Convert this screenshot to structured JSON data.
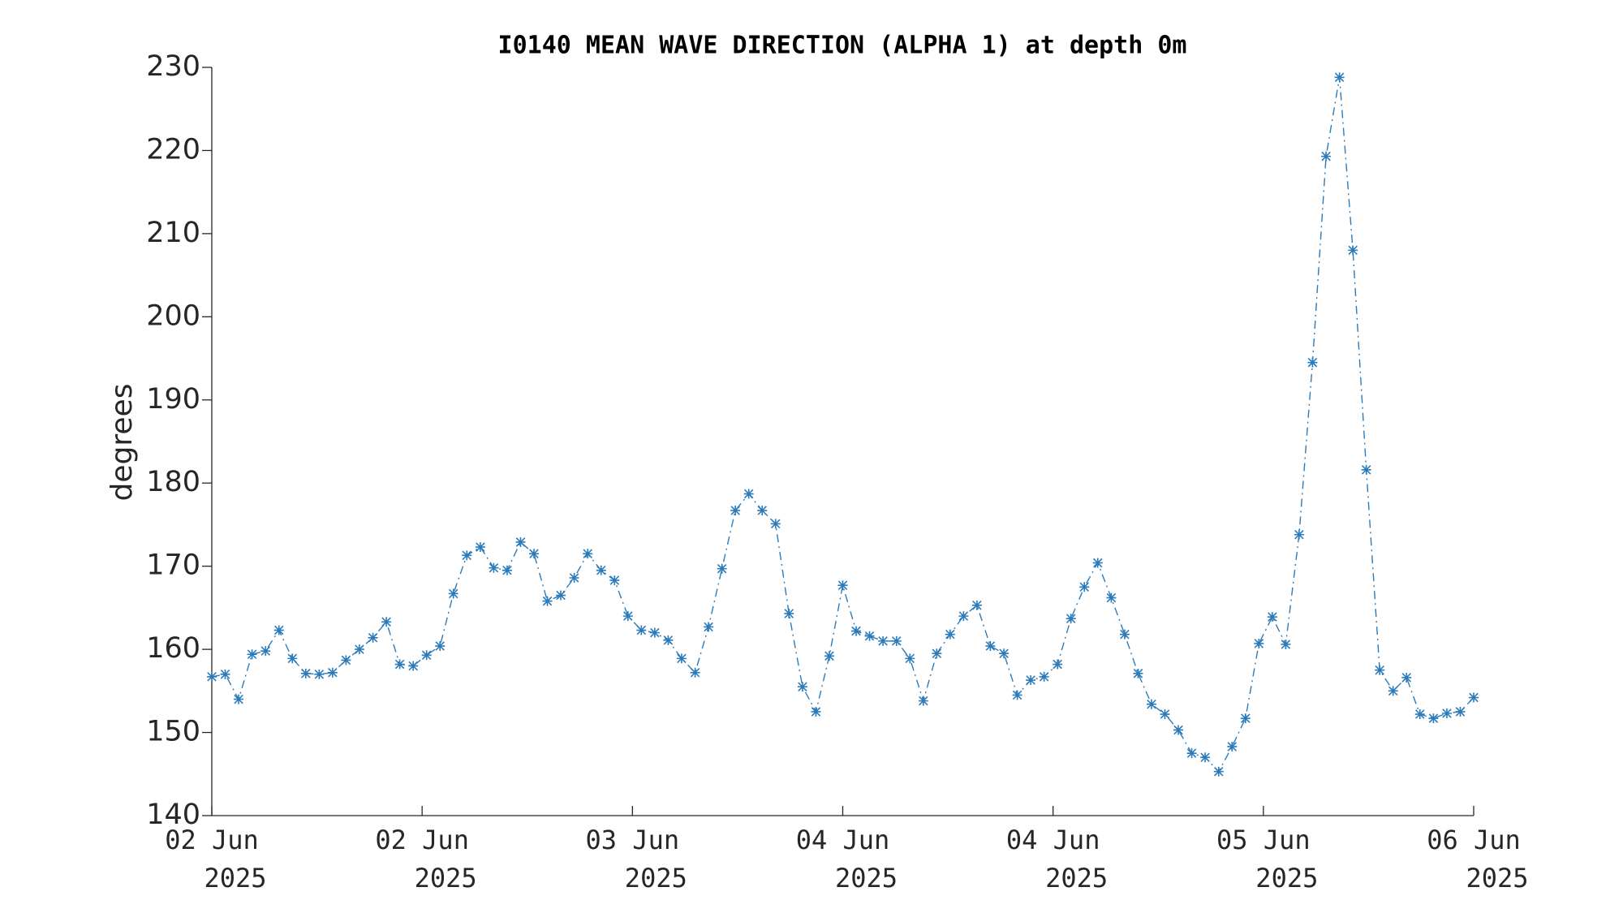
{
  "chart_data": {
    "type": "line",
    "title": "I0140 MEAN WAVE DIRECTION (ALPHA 1) at depth 0m",
    "ylabel": "degrees",
    "xlim": [
      0,
      96
    ],
    "xticks": [
      {
        "value": 0,
        "label": [
          "02 Jun",
          "2025"
        ]
      },
      {
        "value": 16,
        "label": [
          "02 Jun",
          "2025"
        ]
      },
      {
        "value": 32,
        "label": [
          "03 Jun",
          "2025"
        ]
      },
      {
        "value": 48,
        "label": [
          "04 Jun",
          "2025"
        ]
      },
      {
        "value": 64,
        "label": [
          "04 Jun",
          "2025"
        ]
      },
      {
        "value": 80,
        "label": [
          "05 Jun",
          "2025"
        ]
      },
      {
        "value": 96,
        "label": [
          "06 Jun",
          "2025"
        ]
      }
    ],
    "ylim": [
      140,
      230
    ],
    "yticks": [
      140,
      150,
      160,
      170,
      180,
      190,
      200,
      210,
      220,
      230
    ],
    "grid": false,
    "series": [
      {
        "name": "mean wave direction",
        "color": "#2b7bba",
        "line_style": "dash-dot",
        "marker": "asterisk",
        "x": [
          0,
          1.02,
          2.04,
          3.06,
          4.09,
          5.11,
          6.13,
          7.15,
          8.17,
          9.19,
          10.21,
          11.23,
          12.26,
          13.28,
          14.3,
          15.32,
          16.34,
          17.36,
          18.38,
          19.4,
          20.43,
          21.45,
          22.47,
          23.49,
          24.51,
          25.53,
          26.55,
          27.57,
          28.6,
          29.62,
          30.64,
          31.66,
          32.68,
          33.7,
          34.72,
          35.74,
          36.77,
          37.79,
          38.81,
          39.83,
          40.85,
          41.87,
          42.89,
          43.91,
          44.94,
          45.96,
          46.98,
          48.0,
          49.02,
          50.04,
          51.06,
          52.09,
          53.11,
          54.13,
          55.15,
          56.17,
          57.19,
          58.21,
          59.23,
          60.26,
          61.28,
          62.3,
          63.32,
          64.34,
          65.36,
          66.38,
          67.4,
          68.43,
          69.45,
          70.47,
          71.49,
          72.51,
          73.53,
          74.55,
          75.57,
          76.6,
          77.62,
          78.64,
          79.66,
          80.68,
          81.7,
          82.72,
          83.74,
          84.77,
          85.79,
          86.81,
          87.83,
          88.85,
          89.87,
          90.89,
          91.91,
          92.94,
          93.96,
          94.98,
          96
        ],
        "values": [
          156.7,
          157,
          154,
          159.4,
          159.8,
          162.3,
          158.9,
          157.1,
          157,
          157.2,
          158.7,
          160,
          161.4,
          163.3,
          158.2,
          158,
          159.3,
          160.4,
          166.7,
          171.3,
          172.3,
          169.8,
          169.5,
          172.9,
          171.5,
          165.8,
          166.5,
          168.6,
          171.5,
          169.5,
          168.3,
          164,
          162.3,
          162,
          161.1,
          158.9,
          157.2,
          162.7,
          169.7,
          176.7,
          178.7,
          176.7,
          175.1,
          164.3,
          155.5,
          152.5,
          159.2,
          167.7,
          162.2,
          161.6,
          161,
          161,
          158.9,
          153.8,
          159.5,
          161.8,
          164,
          165.3,
          160.4,
          159.5,
          154.5,
          156.3,
          156.7,
          158.2,
          163.7,
          167.5,
          170.4,
          166.2,
          161.8,
          157.1,
          153.4,
          152.2,
          150.3,
          147.5,
          147,
          145.3,
          148.3,
          151.7,
          160.7,
          163.9,
          160.6,
          173.8,
          194.5,
          219.3,
          228.8,
          208,
          181.6,
          157.5,
          155,
          156.6,
          152.2,
          151.7,
          152.3,
          152.5,
          154.2
        ]
      }
    ]
  }
}
